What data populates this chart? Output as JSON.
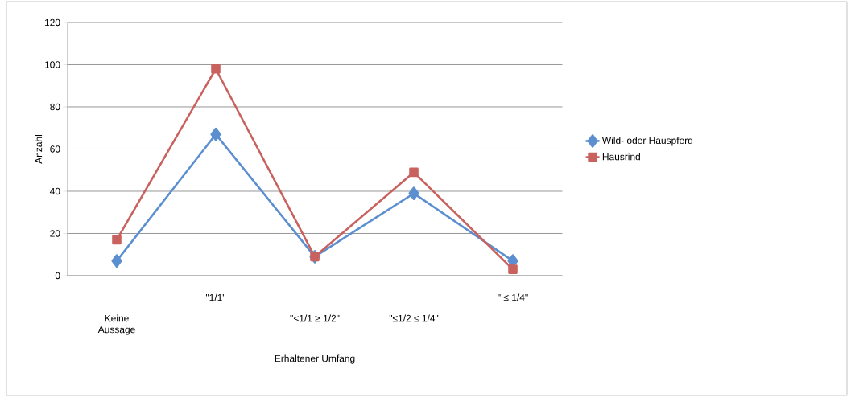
{
  "chart_data": {
    "type": "line",
    "xlabel": "Erhaltener Umfang",
    "ylabel": "Anzahl",
    "categories": [
      "Keine Aussage",
      "\"1/1\"",
      "\"<1/1 ≥ 1/2\"",
      "\"≤1/2 ≤ 1/4\"",
      "\" ≤ 1/4\""
    ],
    "series": [
      {
        "name": "Wild- oder Hauspferd",
        "color": "#5b8fcf",
        "marker": "diamond",
        "values": [
          7,
          67,
          9,
          39,
          7
        ]
      },
      {
        "name": "Hausrind",
        "color": "#c9625f",
        "marker": "square",
        "values": [
          17,
          98,
          9,
          49,
          3
        ]
      }
    ],
    "ylim": [
      0,
      120
    ],
    "yticks": [
      0,
      20,
      40,
      60,
      80,
      100,
      120
    ],
    "grid": "y",
    "legend": "right"
  }
}
